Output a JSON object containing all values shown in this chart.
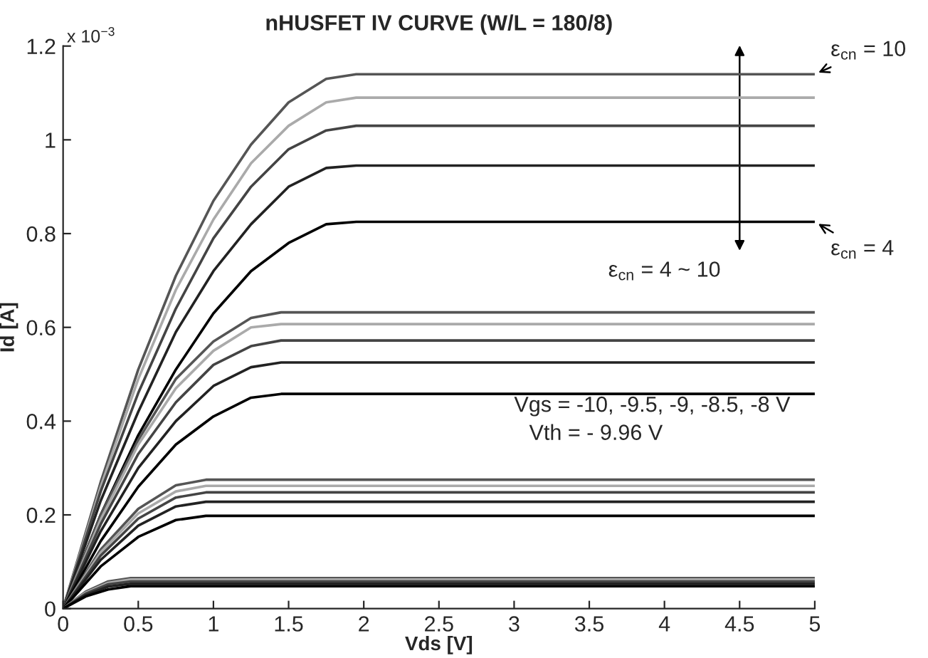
{
  "chart_data": {
    "type": "line",
    "title": "nHUSFET IV CURVE (W/L = 180/8)",
    "xlabel": "Vds [V]",
    "ylabel": "Id [A]",
    "xlim": [
      0,
      5
    ],
    "xticks": [
      0,
      0.5,
      1,
      1.5,
      2,
      2.5,
      3,
      3.5,
      4,
      4.5,
      5
    ],
    "ylim": [
      0,
      1.2
    ],
    "yticks": [
      0,
      0.2,
      0.4,
      0.6,
      0.8,
      1,
      1.2
    ],
    "grid": false,
    "legend": false,
    "marker": "none",
    "line_style": "solid",
    "series": [
      {
        "color": "#555555",
        "x": [
          0,
          0.25,
          0.5,
          0.75,
          1.0,
          1.25,
          1.5,
          1.75,
          1.95,
          5
        ],
        "values": [
          0,
          0.27,
          0.51,
          0.71,
          0.87,
          0.99,
          1.08,
          1.13,
          1.14,
          1.14
        ]
      },
      {
        "color": "#aaaaaa",
        "x": [
          0,
          0.25,
          0.5,
          0.75,
          1.0,
          1.25,
          1.5,
          1.75,
          1.95,
          5
        ],
        "values": [
          0,
          0.26,
          0.49,
          0.68,
          0.83,
          0.95,
          1.03,
          1.08,
          1.09,
          1.09
        ]
      },
      {
        "color": "#444444",
        "x": [
          0,
          0.25,
          0.5,
          0.75,
          1.0,
          1.25,
          1.5,
          1.75,
          1.95,
          5
        ],
        "values": [
          0,
          0.25,
          0.46,
          0.64,
          0.79,
          0.9,
          0.98,
          1.02,
          1.03,
          1.03
        ]
      },
      {
        "color": "#222222",
        "x": [
          0,
          0.25,
          0.5,
          0.75,
          1.0,
          1.25,
          1.5,
          1.75,
          1.95,
          5
        ],
        "values": [
          0,
          0.23,
          0.42,
          0.59,
          0.72,
          0.82,
          0.9,
          0.94,
          0.945,
          0.945
        ]
      },
      {
        "color": "#000000",
        "x": [
          0,
          0.25,
          0.5,
          0.75,
          1.0,
          1.25,
          1.5,
          1.75,
          1.95,
          5
        ],
        "values": [
          0,
          0.2,
          0.37,
          0.51,
          0.63,
          0.72,
          0.78,
          0.82,
          0.825,
          0.825
        ]
      },
      {
        "color": "#555555",
        "x": [
          0,
          0.25,
          0.5,
          0.75,
          1.0,
          1.25,
          1.45,
          5
        ],
        "values": [
          0,
          0.2,
          0.36,
          0.49,
          0.57,
          0.62,
          0.632,
          0.632
        ]
      },
      {
        "color": "#aaaaaa",
        "x": [
          0,
          0.25,
          0.5,
          0.75,
          1.0,
          1.25,
          1.45,
          5
        ],
        "values": [
          0,
          0.19,
          0.35,
          0.47,
          0.55,
          0.6,
          0.607,
          0.607
        ]
      },
      {
        "color": "#444444",
        "x": [
          0,
          0.25,
          0.5,
          0.75,
          1.0,
          1.25,
          1.45,
          5
        ],
        "values": [
          0,
          0.18,
          0.33,
          0.44,
          0.52,
          0.56,
          0.572,
          0.572
        ]
      },
      {
        "color": "#222222",
        "x": [
          0,
          0.25,
          0.5,
          0.75,
          1.0,
          1.25,
          1.45,
          5
        ],
        "values": [
          0,
          0.165,
          0.3,
          0.4,
          0.475,
          0.515,
          0.525,
          0.525
        ]
      },
      {
        "color": "#000000",
        "x": [
          0,
          0.25,
          0.5,
          0.75,
          1.0,
          1.25,
          1.45,
          5
        ],
        "values": [
          0,
          0.144,
          0.26,
          0.35,
          0.41,
          0.45,
          0.458,
          0.458
        ]
      },
      {
        "color": "#555555",
        "x": [
          0,
          0.25,
          0.5,
          0.75,
          0.95,
          5
        ],
        "values": [
          0,
          0.126,
          0.213,
          0.263,
          0.275,
          0.275
        ]
      },
      {
        "color": "#aaaaaa",
        "x": [
          0,
          0.25,
          0.5,
          0.75,
          0.95,
          5
        ],
        "values": [
          0,
          0.12,
          0.203,
          0.25,
          0.262,
          0.262
        ]
      },
      {
        "color": "#444444",
        "x": [
          0,
          0.25,
          0.5,
          0.75,
          0.95,
          5
        ],
        "values": [
          0,
          0.113,
          0.192,
          0.237,
          0.248,
          0.248
        ]
      },
      {
        "color": "#222222",
        "x": [
          0,
          0.25,
          0.5,
          0.75,
          0.95,
          5
        ],
        "values": [
          0,
          0.104,
          0.177,
          0.218,
          0.228,
          0.228
        ]
      },
      {
        "color": "#000000",
        "x": [
          0,
          0.25,
          0.5,
          0.75,
          0.95,
          5
        ],
        "values": [
          0,
          0.09,
          0.153,
          0.189,
          0.198,
          0.198
        ]
      },
      {
        "color": "#555555",
        "x": [
          0,
          0.15,
          0.3,
          0.45,
          5
        ],
        "values": [
          0,
          0.036,
          0.058,
          0.065,
          0.065
        ]
      },
      {
        "color": "#aaaaaa",
        "x": [
          0,
          0.15,
          0.3,
          0.45,
          5
        ],
        "values": [
          0,
          0.034,
          0.055,
          0.062,
          0.062
        ]
      },
      {
        "color": "#444444",
        "x": [
          0,
          0.15,
          0.3,
          0.45,
          5
        ],
        "values": [
          0,
          0.032,
          0.052,
          0.058,
          0.058
        ]
      },
      {
        "color": "#222222",
        "x": [
          0,
          0.15,
          0.3,
          0.45,
          5
        ],
        "values": [
          0,
          0.029,
          0.047,
          0.053,
          0.053
        ]
      },
      {
        "color": "#000000",
        "x": [
          0,
          0.15,
          0.3,
          0.45,
          5
        ],
        "values": [
          0,
          0.026,
          0.041,
          0.048,
          0.048
        ]
      }
    ],
    "annotations": [
      {
        "text": "ε$_{cn}$ = 10",
        "x": 5,
        "y": 1.14
      },
      {
        "text": "ε$_{cn}$ = 4",
        "x": 5,
        "y": 0.825
      },
      "ε$_{cn}$ = 4 ~ 10",
      "Vgs = -10, -9.5, -9, -8.5, -8 V",
      "Vth = - 9.96 V",
      "x 10$^{−3}$"
    ]
  }
}
